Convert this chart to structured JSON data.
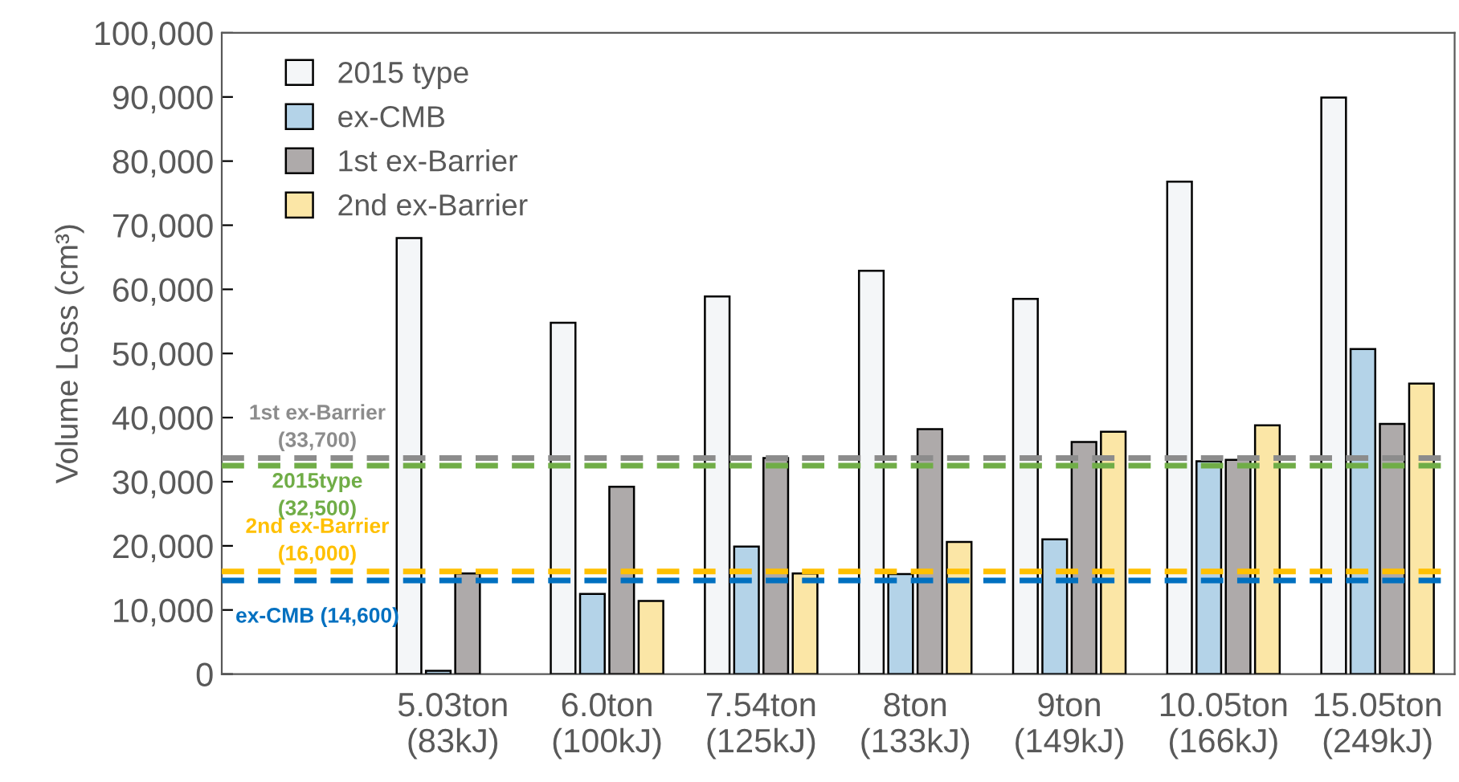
{
  "chart_data": {
    "type": "bar",
    "ylabel": "Volume Loss (cm³)",
    "categories": [
      null,
      "5.03ton\n(83kJ)",
      "6.0ton\n(100kJ)",
      "7.54ton\n(125kJ)",
      "8ton\n(133kJ)",
      "9ton\n(149kJ)",
      "10.05ton\n(166kJ)",
      "15.05ton\n(249kJ)"
    ],
    "series": [
      {
        "name": "2015 type",
        "color": "#f4f6f8",
        "values": [
          null,
          68000,
          54800,
          58900,
          62900,
          58500,
          76800,
          89900
        ]
      },
      {
        "name": "ex-CMB",
        "color": "#b4d3e8",
        "values": [
          null,
          500,
          12500,
          19900,
          15600,
          21000,
          33200,
          50700
        ]
      },
      {
        "name": "1st ex-Barrier",
        "color": "#aeaaaa",
        "values": [
          null,
          15700,
          29200,
          33700,
          38200,
          36200,
          33400,
          39000
        ]
      },
      {
        "name": "2nd ex-Barrier",
        "color": "#fbe6a6",
        "values": [
          null,
          null,
          11400,
          15700,
          20600,
          37800,
          38800,
          45300
        ]
      }
    ],
    "ylim": [
      0,
      100000
    ],
    "yticks": [
      0,
      {
        "value": 10000,
        "label": "10,000"
      },
      {
        "value": 20000,
        "label": "20,000"
      },
      {
        "value": 30000,
        "label": "30,000"
      },
      {
        "value": 40000,
        "label": "40,000"
      },
      {
        "value": 50000,
        "label": "50,000"
      },
      {
        "value": 60000,
        "label": "60,000"
      },
      {
        "value": 70000,
        "label": "70,000"
      },
      {
        "value": 80000,
        "label": "80,000"
      },
      {
        "value": 90000,
        "label": "90,000"
      },
      {
        "value": 100000,
        "label": "100,000"
      }
    ],
    "ref_lines": [
      {
        "axis": "y",
        "value": 33700,
        "label": "1st ex-Barrier\n(33,700)",
        "color": "#8c8c8c",
        "line_style": "dashed"
      },
      {
        "axis": "y",
        "value": 32500,
        "label": "2015type\n(32,500)",
        "color": "#70ad47",
        "line_style": "dashed"
      },
      {
        "axis": "y",
        "value": 16000,
        "label": "2nd ex-Barrier\n(16,000)",
        "color": "#ffc000",
        "line_style": "dashed"
      },
      {
        "axis": "y",
        "value": 14600,
        "label": "ex-CMB (14,600)",
        "color": "#0070c0",
        "line_style": "dashed"
      }
    ],
    "grid": false,
    "legend": "top left"
  }
}
